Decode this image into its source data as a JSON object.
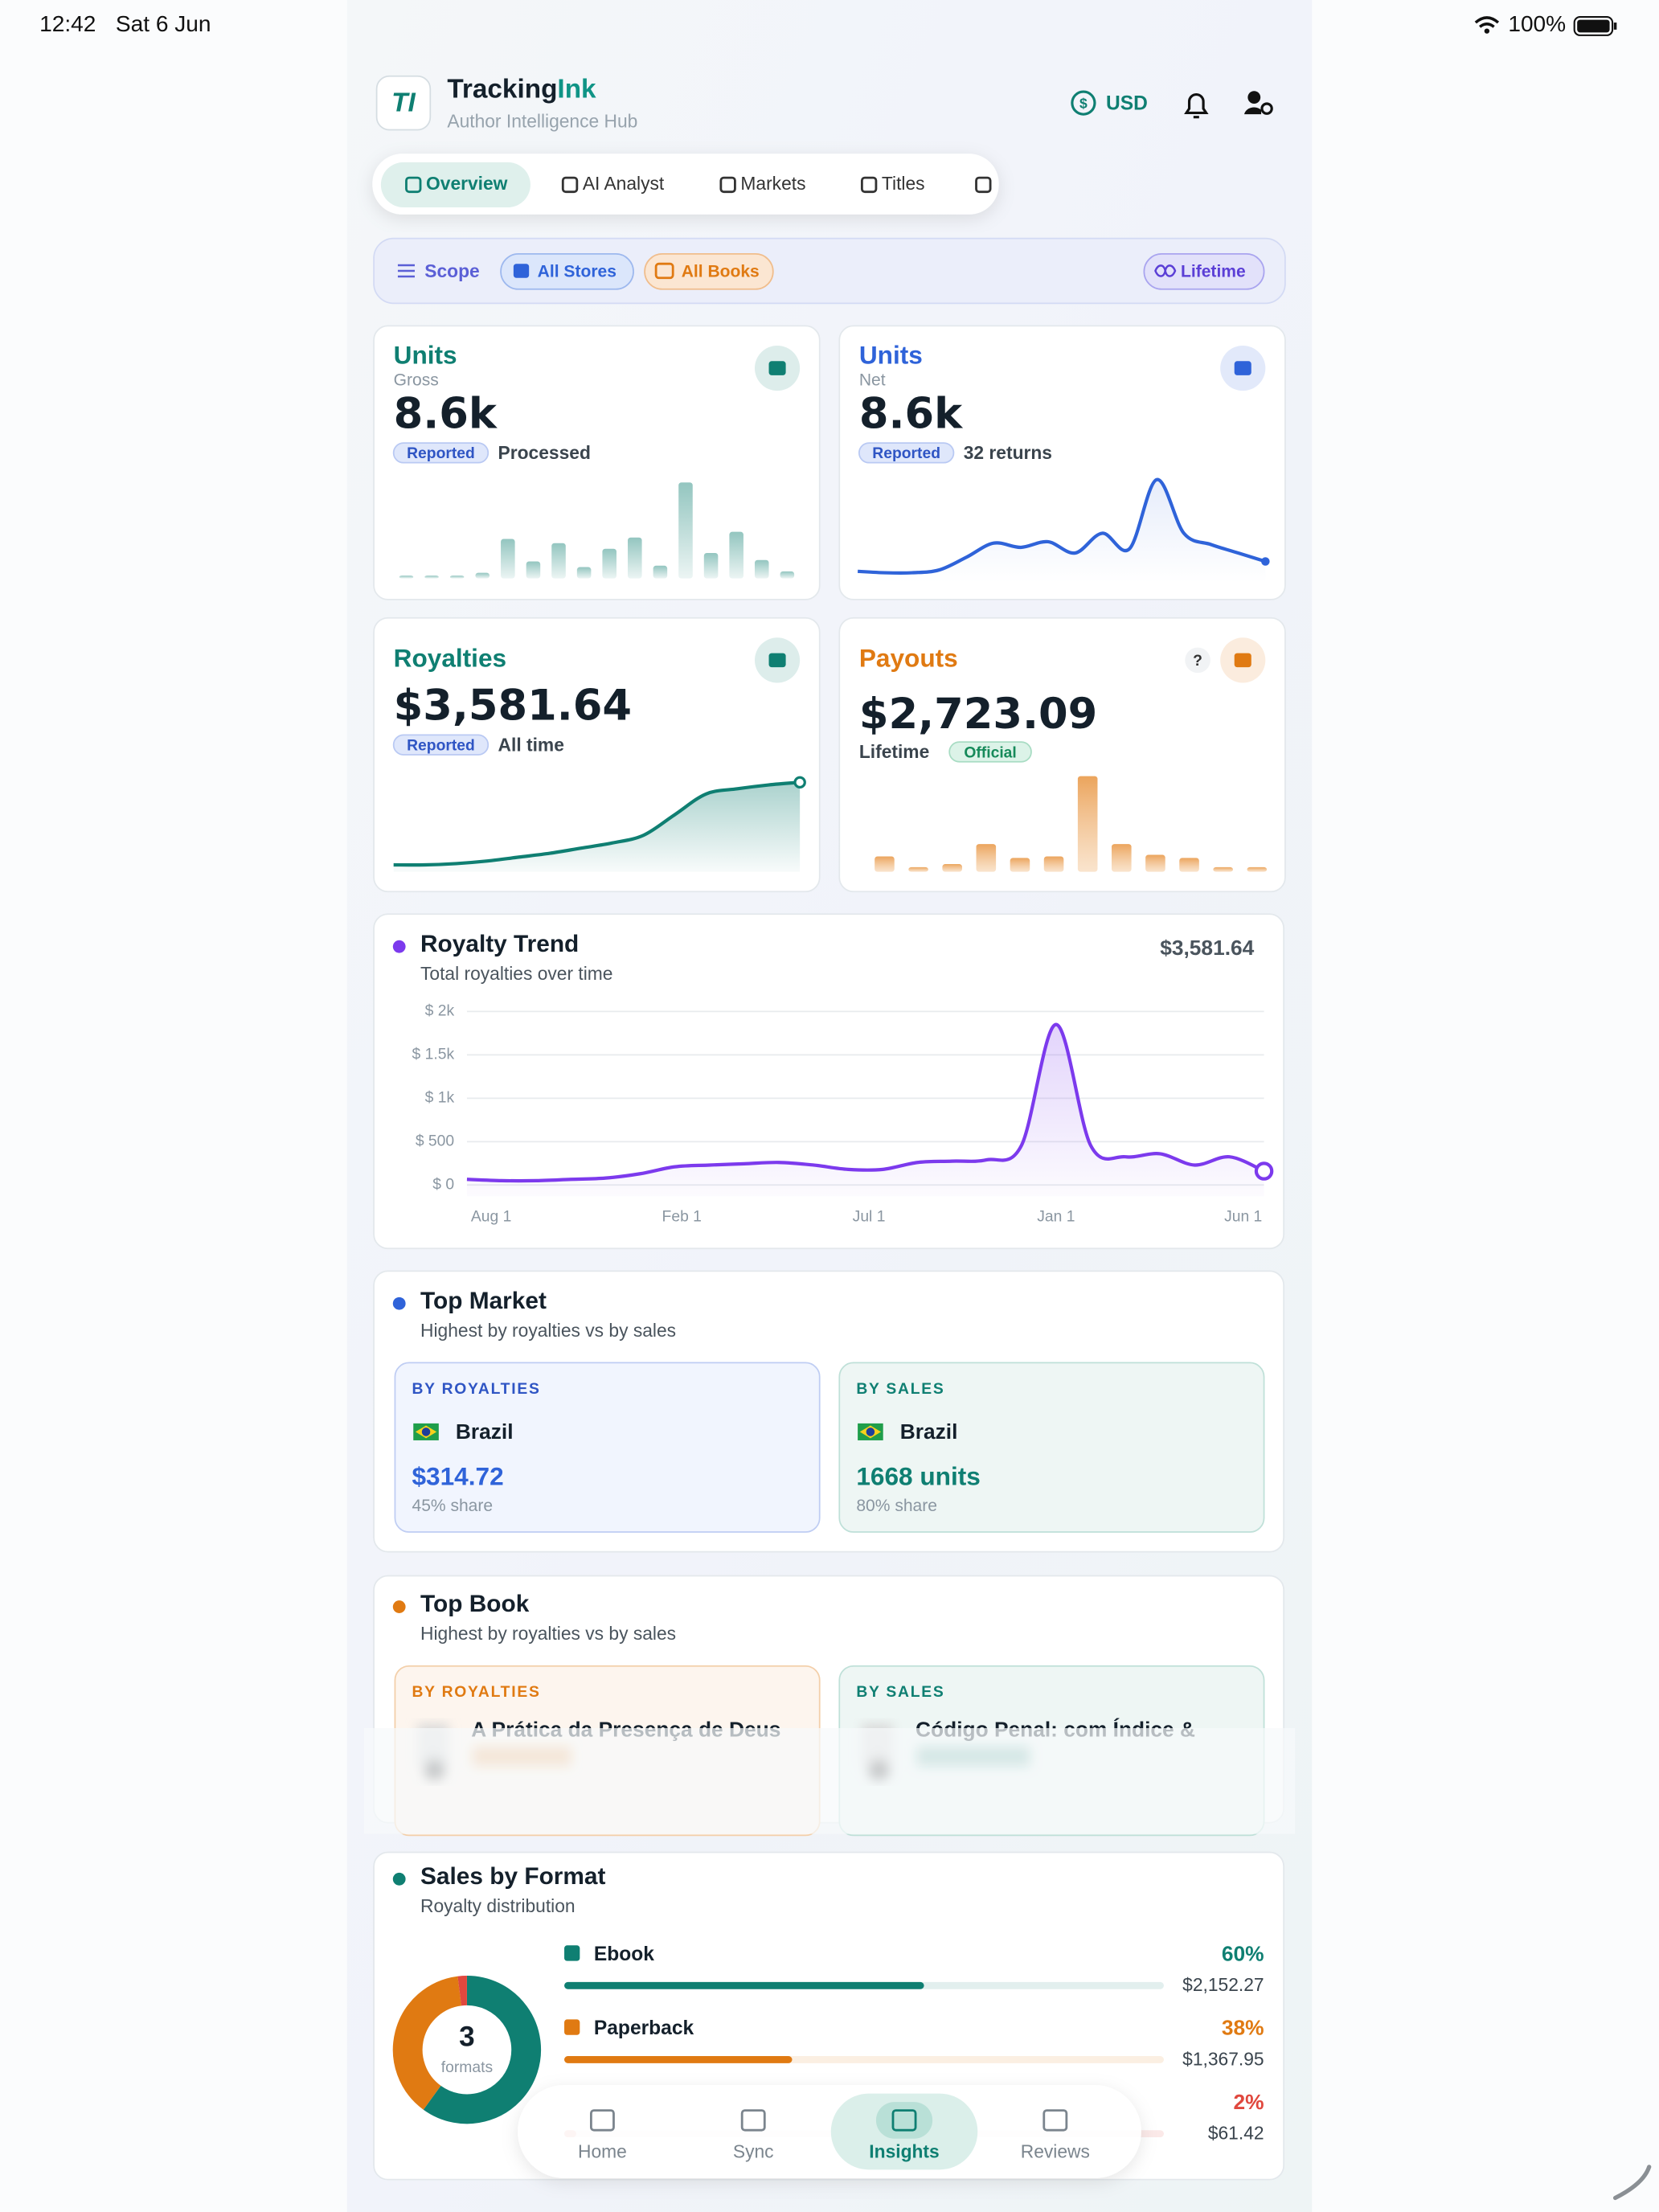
{
  "status": {
    "time": "12:42",
    "date": "Sat 6 Jun",
    "battery": "100%"
  },
  "header": {
    "brand": [
      "Tracking",
      "Ink"
    ],
    "subtitle": "Author Intelligence Hub",
    "currency": "USD"
  },
  "tabs": [
    "Overview",
    "AI Analyst",
    "Markets",
    "Titles"
  ],
  "scope": {
    "label": "Scope",
    "chips": [
      "All Stores",
      "All Books"
    ],
    "period": "Lifetime"
  },
  "cards": [
    {
      "title": "Units",
      "subtitle": "Gross",
      "value": "8.6k",
      "badge": "Reported",
      "note": "Processed",
      "color": "#0f7f72",
      "chart": {
        "type": "bar",
        "values": [
          2,
          0,
          2,
          4,
          28,
          12,
          25,
          8,
          21,
          29,
          9,
          68,
          18,
          33,
          13,
          5
        ],
        "ylim": [
          0,
          70
        ]
      }
    },
    {
      "title": "Units",
      "subtitle": "Net",
      "value": "8.6k",
      "badge": "Reported",
      "note": "32 returns",
      "color": "#2f63d9",
      "chart": {
        "type": "line",
        "values": [
          5,
          4,
          4,
          6,
          15,
          25,
          22,
          26,
          18,
          32,
          21,
          70,
          32,
          24,
          18,
          12
        ],
        "ylim": [
          0,
          75
        ]
      }
    },
    {
      "title": "Royalties",
      "value": "$3,581.64",
      "badge": "Reported",
      "note": "All time",
      "color": "#0f7f72",
      "chart": {
        "type": "area",
        "values": [
          1,
          1,
          2,
          4,
          7,
          10,
          14,
          18,
          24,
          40,
          56,
          60,
          63,
          65
        ],
        "ylim": [
          0,
          70
        ]
      }
    },
    {
      "title": "Payouts",
      "help": "?",
      "value": "$2,723.09",
      "note": "Lifetime",
      "badge": "Official",
      "color": "#e07a12",
      "chart": {
        "type": "bar",
        "values": [
          10,
          3,
          5,
          18,
          9,
          10,
          62,
          18,
          11,
          9,
          3,
          3
        ],
        "ylim": [
          0,
          64
        ]
      }
    }
  ],
  "trend": {
    "title": "Royalty Trend",
    "subtitle": "Total royalties over time",
    "total": "$3,581.64",
    "chart_data": {
      "type": "line",
      "color": "#7c3aed",
      "values": [
        65,
        50,
        50,
        65,
        80,
        130,
        210,
        230,
        245,
        260,
        230,
        180,
        180,
        260,
        275,
        290,
        455,
        1850,
        455,
        325,
        360,
        230,
        325,
        160
      ],
      "xlim": [
        0,
        23
      ],
      "xticks": [
        {
          "value": 0.7,
          "label": "Aug 1"
        },
        {
          "value": 6.2,
          "label": "Feb 1"
        },
        {
          "value": 11.6,
          "label": "Jul 1"
        },
        {
          "value": 17,
          "label": "Jan 1"
        },
        {
          "value": 22.4,
          "label": "Jun 1"
        }
      ],
      "ylim": [
        0,
        2000
      ],
      "yticks": [
        {
          "value": 0,
          "label": "$ 0"
        },
        {
          "value": 500,
          "label": "$ 500"
        },
        {
          "value": 1000,
          "label": "$ 1k"
        },
        {
          "value": 1500,
          "label": "$ 1.5k"
        },
        {
          "value": 2000,
          "label": "$ 2k"
        }
      ],
      "grid": true
    }
  },
  "top_market": {
    "title": "Top Market",
    "subtitle": "Highest by royalties vs by sales",
    "by_royalties": {
      "label": "BY ROYALTIES",
      "country": "Brazil",
      "value": "$314.72",
      "share": "45% share"
    },
    "by_sales": {
      "label": "BY SALES",
      "country": "Brazil",
      "value": "1668 units",
      "share": "80% share"
    }
  },
  "top_book": {
    "title": "Top Book",
    "subtitle": "Highest by royalties vs by sales",
    "by_royalties": {
      "label": "BY ROYALTIES",
      "book": "A Prática da Presença de Deus"
    },
    "by_sales": {
      "label": "BY SALES",
      "book": "Código Penal: com Índice &"
    }
  },
  "formats": {
    "title": "Sales by Format",
    "subtitle": "Royalty distribution",
    "count": 3,
    "count_label": "formats",
    "xlim": [
      0,
      100
    ],
    "items": [
      {
        "name": "Ebook",
        "share": 60,
        "share_label": "60%",
        "amount": "$2,152.27",
        "color": "#0f7f72"
      },
      {
        "name": "Paperback",
        "share": 38,
        "share_label": "38%",
        "amount": "$1,367.95",
        "color": "#e07a12"
      },
      {
        "share": 2,
        "share_label": "2%",
        "amount": "$61.42",
        "color": "#e0483e"
      }
    ]
  },
  "nav": [
    "Home",
    "Sync",
    "Insights",
    "Reviews"
  ]
}
